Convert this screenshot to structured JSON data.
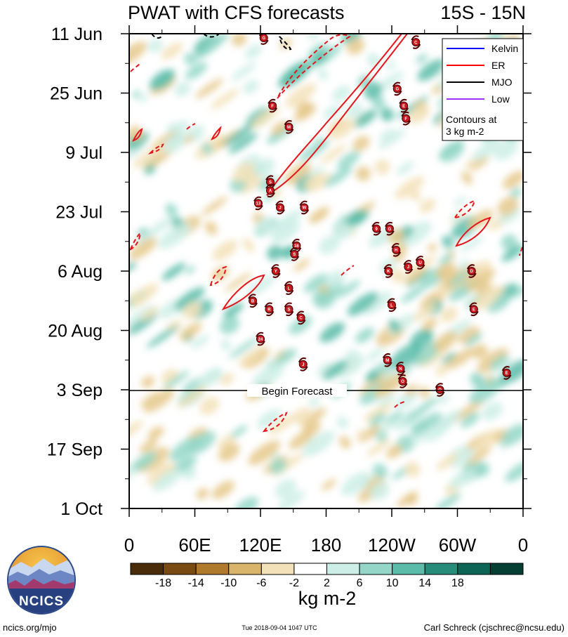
{
  "chart_data": {
    "type": "heatmap",
    "title": "PWAT with CFS forecasts",
    "region": "15S - 15N",
    "x_ticks": [
      "0",
      "60E",
      "120E",
      "180",
      "120W",
      "60W",
      "0"
    ],
    "y_ticks": [
      "11 Jun",
      "25 Jun",
      "9 Jul",
      "23 Jul",
      "6 Aug",
      "20 Aug",
      "3 Sep",
      "17 Sep",
      "1 Oct"
    ],
    "forecast_start": "3 Sep",
    "forecast_label": "Begin Forecast",
    "legend": {
      "entries": [
        {
          "name": "Kelvin",
          "color": "#0000ff"
        },
        {
          "name": "ER",
          "color": "#ff0000"
        },
        {
          "name": "MJO",
          "color": "#000000"
        },
        {
          "name": "Low",
          "color": "#9b30ff"
        }
      ],
      "note_line1": "Contours at",
      "note_line2": "3 kg m-2"
    },
    "colorbar": {
      "labels": [
        "-18",
        "-14",
        "-10",
        "-6",
        "-2",
        "2",
        "6",
        "10",
        "14",
        "18"
      ],
      "colors": [
        "#4b2c0a",
        "#7a4a13",
        "#b07a2c",
        "#d9b56c",
        "#f3e2b9",
        "#ffffff",
        "#cdeee6",
        "#94d7c8",
        "#5bbca9",
        "#278c7a",
        "#0d6655",
        "#053f34"
      ],
      "unit": "kg m-2"
    },
    "storms": [
      {
        "label": "G",
        "lon": 123,
        "date": "12 Jun"
      },
      {
        "label": "C",
        "lon": 262,
        "date": "13 Jun"
      },
      {
        "label": "G",
        "lon": 245,
        "date": "24 Jun"
      },
      {
        "label": "F",
        "lon": 131,
        "date": "28 Jun"
      },
      {
        "label": "E",
        "lon": 251,
        "date": "28 Jun"
      },
      {
        "label": "F",
        "lon": 253,
        "date": "1 Jul"
      },
      {
        "label": "M",
        "lon": 146,
        "date": "3 Jul"
      },
      {
        "label": "S",
        "lon": 129,
        "date": "16 Jul"
      },
      {
        "label": "A",
        "lon": 129,
        "date": "18 Jul"
      },
      {
        "label": "13",
        "lon": 118,
        "date": "21 Jul"
      },
      {
        "label": "J",
        "lon": 138,
        "date": "22 Jul"
      },
      {
        "label": "W",
        "lon": 160,
        "date": "22 Jul"
      },
      {
        "label": "9",
        "lon": 226,
        "date": "27 Jul"
      },
      {
        "label": "G",
        "lon": 238,
        "date": "27 Jul"
      },
      {
        "label": "16",
        "lon": 153,
        "date": "31 Jul"
      },
      {
        "label": "H",
        "lon": 244,
        "date": "1 Aug"
      },
      {
        "label": "S",
        "lon": 151,
        "date": "2 Aug"
      },
      {
        "label": "Y",
        "lon": 134,
        "date": "6 Aug"
      },
      {
        "label": "K",
        "lon": 237,
        "date": "6 Aug"
      },
      {
        "label": "J",
        "lon": 255,
        "date": "5 Aug"
      },
      {
        "label": "U",
        "lon": 266,
        "date": "4 Aug"
      },
      {
        "label": "D",
        "lon": 313,
        "date": "6 Aug"
      },
      {
        "label": "L",
        "lon": 146,
        "date": "10 Aug"
      },
      {
        "label": "B",
        "lon": 113,
        "date": "13 Aug"
      },
      {
        "label": "R",
        "lon": 128,
        "date": "15 Aug"
      },
      {
        "label": "S",
        "lon": 146,
        "date": "15 Aug"
      },
      {
        "label": "L",
        "lon": 240,
        "date": "14 Aug"
      },
      {
        "label": "E",
        "lon": 315,
        "date": "15 Aug"
      },
      {
        "label": "C",
        "lon": 157,
        "date": "17 Aug"
      },
      {
        "label": "24",
        "lon": 120,
        "date": "22 Aug"
      },
      {
        "label": "M",
        "lon": 236,
        "date": "27 Aug"
      },
      {
        "label": "J",
        "lon": 159,
        "date": "28 Aug"
      },
      {
        "label": "N",
        "lon": 248,
        "date": "29 Aug"
      },
      {
        "label": "E",
        "lon": 345,
        "date": "30 Aug"
      },
      {
        "label": "O",
        "lon": 250,
        "date": "1 Sep"
      },
      {
        "label": "O",
        "lon": 284,
        "date": "3 Sep"
      }
    ]
  },
  "footer": {
    "left": "ncics.org/mjo",
    "center": "Tue 2018-09-04 1047 UTC",
    "right": "Carl Schreck (cjschrec@ncsu.edu)",
    "logo_text": "NCICS"
  }
}
